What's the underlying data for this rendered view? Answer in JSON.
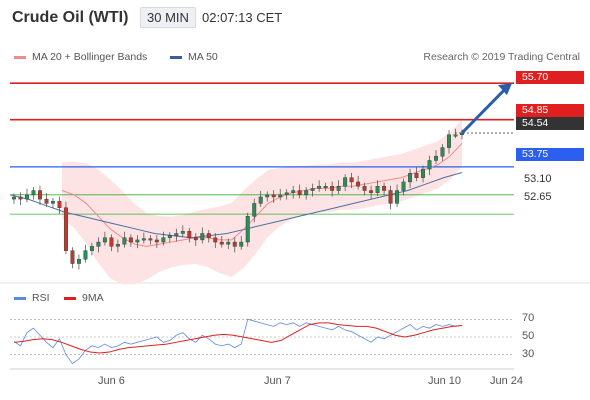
{
  "header": {
    "instrument": "Crude Oil (WTI)",
    "timeframe": "30 MIN",
    "time": "02:07:13 CET"
  },
  "legend": {
    "ma20_label": "MA 20 + Bollinger Bands",
    "ma50_label": "MA 50",
    "credit": "Research © 2019 Trading Central"
  },
  "colors": {
    "resistance": "#e02020",
    "support": "#33b233",
    "pivot": "#2a5ff0",
    "ma20": "#f08b8b",
    "ma50": "#4a6fa5",
    "band_fill": "#fde3e3",
    "candle_up": "#2e8b57",
    "candle_down": "#c0392b",
    "rsi": "#5b8be0",
    "rsi_ma": "#e02020",
    "arrow": "#2a5fa8"
  },
  "chart_data": [
    {
      "type": "candlestick",
      "levels": [
        {
          "value": 55.7,
          "label": "55.70",
          "kind": "resistance"
        },
        {
          "value": 54.85,
          "label": "54.85",
          "kind": "resistance"
        },
        {
          "value": 54.54,
          "label": "54.54",
          "kind": "last"
        },
        {
          "value": 53.75,
          "label": "53.75",
          "kind": "pivot"
        },
        {
          "value": 53.1,
          "label": "53.10",
          "kind": "support"
        },
        {
          "value": 52.65,
          "label": "52.65",
          "kind": "support"
        }
      ],
      "x_ticks": [
        "Jun 6",
        "Jun 7",
        "Jun 10",
        "Jun 24"
      ],
      "ylim": [
        51.0,
        56.1
      ],
      "close_path": [
        53.05,
        53.0,
        53.1,
        53.2,
        53.0,
        52.9,
        52.95,
        52.8,
        51.8,
        51.5,
        51.6,
        51.8,
        51.9,
        52.0,
        52.1,
        51.9,
        51.95,
        52.1,
        52.0,
        52.05,
        52.08,
        52.05,
        52.0,
        52.1,
        52.15,
        52.2,
        52.25,
        52.1,
        52.05,
        52.2,
        52.1,
        52.0,
        51.95,
        52.0,
        51.9,
        52.0,
        52.6,
        52.9,
        53.05,
        53.1,
        53.05,
        53.1,
        53.15,
        53.2,
        53.1,
        53.2,
        53.25,
        53.3,
        53.3,
        53.2,
        53.3,
        53.5,
        53.4,
        53.3,
        53.2,
        53.15,
        53.3,
        53.2,
        52.9,
        53.2,
        53.4,
        53.6,
        53.5,
        53.7,
        53.9,
        54.0,
        54.2,
        54.5,
        54.5,
        54.54
      ],
      "ma20": [
        53.2,
        53.1,
        52.9,
        52.6,
        52.3,
        52.1,
        51.95,
        51.9,
        51.95,
        52.0,
        52.05,
        52.1,
        52.1,
        52.05,
        52.05,
        52.3,
        52.6,
        52.9,
        53.05,
        53.15,
        53.2,
        53.25,
        53.25,
        53.3,
        53.3,
        53.35,
        53.4,
        53.45,
        53.5,
        53.6,
        53.7,
        53.8,
        54.0,
        54.3
      ],
      "ma50": [
        53.1,
        53.0,
        52.85,
        52.7,
        52.6,
        52.5,
        52.4,
        52.3,
        52.2,
        52.15,
        52.1,
        52.15,
        52.2,
        52.3,
        52.4,
        52.5,
        52.6,
        52.7,
        52.8,
        52.9,
        53.0,
        53.1,
        53.2,
        53.35,
        53.5,
        53.62
      ],
      "projection": {
        "from": 54.54,
        "to": 55.7
      }
    },
    {
      "type": "line",
      "name": "RSI",
      "ylim": [
        15,
        85
      ],
      "y_ticks": [
        70,
        50,
        30
      ],
      "series": [
        {
          "name": "RSI",
          "values": [
            45,
            40,
            55,
            60,
            52,
            44,
            38,
            48,
            30,
            20,
            25,
            35,
            40,
            38,
            42,
            38,
            40,
            44,
            42,
            44,
            46,
            48,
            50,
            44,
            46,
            52,
            55,
            48,
            44,
            52,
            48,
            42,
            40,
            42,
            38,
            42,
            70,
            68,
            66,
            64,
            62,
            66,
            64,
            66,
            62,
            66,
            64,
            62,
            60,
            58,
            62,
            58,
            56,
            52,
            48,
            44,
            50,
            48,
            52,
            56,
            60,
            64,
            58,
            62,
            60,
            64,
            62,
            64,
            62,
            63
          ]
        },
        {
          "name": "9MA",
          "values": [
            44,
            45,
            47,
            48,
            47,
            44,
            40,
            36,
            33,
            32,
            33,
            36,
            38,
            39,
            40,
            41,
            42,
            44,
            46,
            48,
            50,
            52,
            53,
            52,
            50,
            48,
            46,
            44,
            46,
            52,
            58,
            64,
            66,
            66,
            64,
            63,
            62,
            62,
            60,
            56,
            52,
            50,
            52,
            55,
            58,
            60,
            62,
            63
          ]
        }
      ],
      "legend": [
        "RSI",
        "9MA"
      ]
    }
  ]
}
